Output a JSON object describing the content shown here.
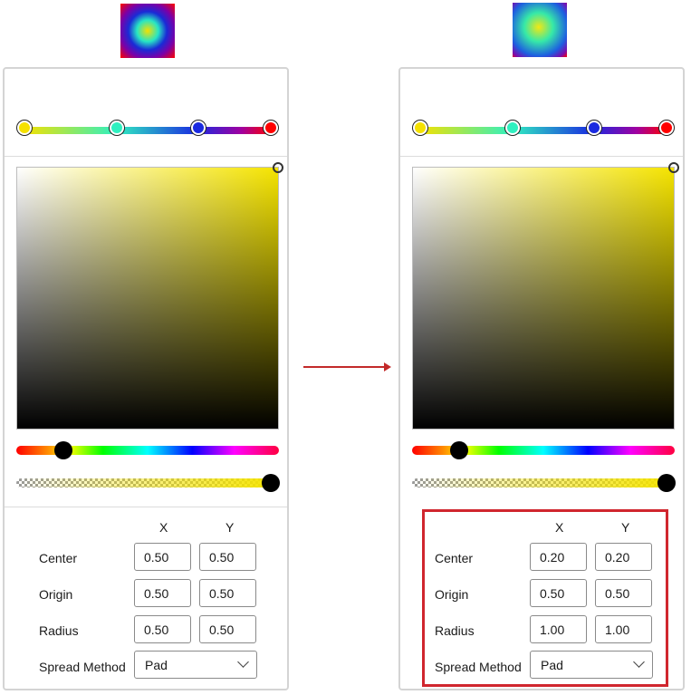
{
  "left": {
    "column_headers": {
      "x": "X",
      "y": "Y"
    },
    "rows": [
      {
        "label": "Center",
        "x": "0.50",
        "y": "0.50"
      },
      {
        "label": "Origin",
        "x": "0.50",
        "y": "0.50"
      },
      {
        "label": "Radius",
        "x": "0.50",
        "y": "0.50"
      }
    ],
    "spread": {
      "label": "Spread Method",
      "value": "Pad"
    }
  },
  "right": {
    "column_headers": {
      "x": "X",
      "y": "Y"
    },
    "rows": [
      {
        "label": "Center",
        "x": "0.20",
        "y": "0.20"
      },
      {
        "label": "Origin",
        "x": "0.50",
        "y": "0.50"
      },
      {
        "label": "Radius",
        "x": "1.00",
        "y": "1.00"
      }
    ],
    "spread": {
      "label": "Spread Method",
      "value": "Pad"
    }
  },
  "gradient_stops": [
    "#f5e100",
    "#30f0c0",
    "#1a2ae0",
    "#ff0000"
  ],
  "selected_color": "#f5e400",
  "hue_value": 0.18,
  "alpha_value": 1.0,
  "accent_highlight": "#d0262e",
  "icons": {
    "transition_arrow": "arrow-right-icon",
    "dropdown": "chevron-down-icon"
  }
}
